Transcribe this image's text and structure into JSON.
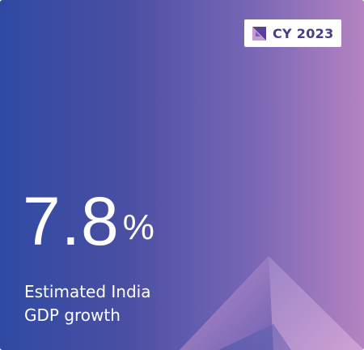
{
  "badge": {
    "icon": "brand-mark-icon",
    "label": "CY 2023"
  },
  "stat": {
    "value": "7.8",
    "unit": "%"
  },
  "caption": {
    "line1": "Estimated India",
    "line2": "GDP growth"
  },
  "colors": {
    "gradient_start": "#2f4aa3",
    "gradient_end": "#b583c1",
    "badge_text": "#4a3a8a",
    "text": "#ffffff"
  }
}
